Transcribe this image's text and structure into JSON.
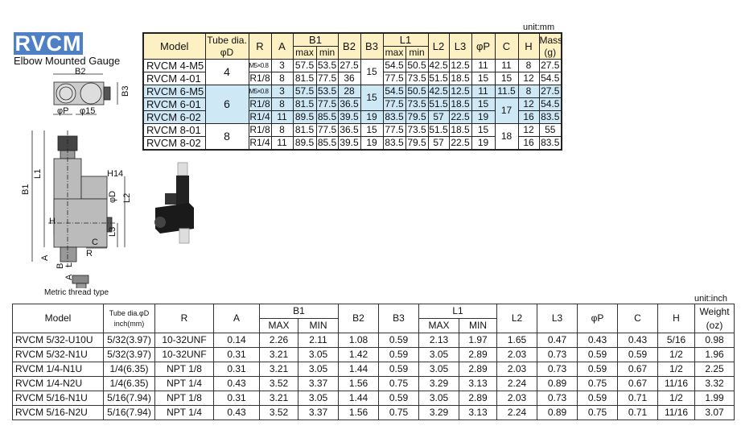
{
  "header": {
    "logo": "RVCM",
    "subtitle": "Elbow Mounted Gauge"
  },
  "drawing": {
    "labels": [
      "B2",
      "B3",
      "φP",
      "φ15",
      "B1",
      "L1",
      "H14",
      "φD",
      "L2",
      "L3",
      "H",
      "C",
      "R",
      "A"
    ],
    "metric_labels": [
      "B",
      "L",
      "A"
    ],
    "caption": "Metric thread type"
  },
  "metric_table": {
    "unit": "unit:mm",
    "headers": {
      "model": "Model",
      "tube_l1": "Tube dia.",
      "tube_l2": "φD",
      "r": "R",
      "a": "A",
      "b1": "B1",
      "max": "max",
      "min": "min",
      "b2": "B2",
      "b3": "B3",
      "l1": "L1",
      "l2": "L2",
      "l3": "L3",
      "p": "φP",
      "c": "C",
      "h": "H",
      "mass_l1": "Mass",
      "mass_l2": "(g)"
    },
    "rows": [
      {
        "model": "RVCM 4-M5",
        "d": "4",
        "r": "M5×0.8",
        "a": "3",
        "b1max": "57.5",
        "b1min": "53.5",
        "b2": "27.5",
        "b3": "15",
        "l1max": "54.5",
        "l1min": "50.5",
        "l2": "42.5",
        "l3": "12.5",
        "p": "11",
        "c": "11",
        "h": "8",
        "mass": "27.5"
      },
      {
        "model": "RVCM 4-01",
        "d": "4",
        "r": "R1/8",
        "a": "8",
        "b1max": "81.5",
        "b1min": "77.5",
        "b2": "36",
        "b3": "15",
        "l1max": "77.5",
        "l1min": "73.5",
        "l2": "51.5",
        "l3": "18.5",
        "p": "15",
        "c": "15",
        "h": "12",
        "mass": "54.5"
      },
      {
        "model": "RVCM 6-M5",
        "d": "6",
        "r": "M5×0.8",
        "a": "3",
        "b1max": "57.5",
        "b1min": "53.5",
        "b2": "28",
        "b3": "15",
        "l1max": "54.5",
        "l1min": "50.5",
        "l2": "42.5",
        "l3": "12.5",
        "p": "11",
        "c": "11.5",
        "h": "8",
        "mass": "27.5"
      },
      {
        "model": "RVCM 6-01",
        "d": "6",
        "r": "R1/8",
        "a": "8",
        "b1max": "81.5",
        "b1min": "77.5",
        "b2": "36.5",
        "b3": "15",
        "l1max": "77.5",
        "l1min": "73.5",
        "l2": "51.5",
        "l3": "18.5",
        "p": "15",
        "c": "17",
        "h": "12",
        "mass": "54.5"
      },
      {
        "model": "RVCM 6-02",
        "d": "6",
        "r": "R1/4",
        "a": "11",
        "b1max": "89.5",
        "b1min": "85.5",
        "b2": "39.5",
        "b3": "19",
        "l1max": "83.5",
        "l1min": "79.5",
        "l2": "57",
        "l3": "22.5",
        "p": "19",
        "c": "17",
        "h": "16",
        "mass": "83.5"
      },
      {
        "model": "RVCM 8-01",
        "d": "8",
        "r": "R1/8",
        "a": "8",
        "b1max": "81.5",
        "b1min": "77.5",
        "b2": "36.5",
        "b3": "15",
        "l1max": "77.5",
        "l1min": "73.5",
        "l2": "51.5",
        "l3": "18.5",
        "p": "15",
        "c": "18",
        "h": "12",
        "mass": "55"
      },
      {
        "model": "RVCM 8-02",
        "d": "8",
        "r": "R1/4",
        "a": "11",
        "b1max": "89.5",
        "b1min": "85.5",
        "b2": "39.5",
        "b3": "19",
        "l1max": "83.5",
        "l1min": "79.5",
        "l2": "57",
        "l3": "22.5",
        "p": "19",
        "c": "18",
        "h": "16",
        "mass": "83.5"
      }
    ],
    "highlight_color": "#cfe8f6",
    "header_color": "#fdf1c4"
  },
  "inch_table": {
    "unit": "unit:inch",
    "headers": {
      "model": "Model",
      "tube_l1": "Tube dia.φD",
      "tube_l2": "inch(mm)",
      "r": "R",
      "a": "A",
      "b1": "B1",
      "max": "MAX",
      "min": "MIN",
      "b2": "B2",
      "b3": "B3",
      "l1": "L1",
      "l2": "L2",
      "l3": "L3",
      "p": "φP",
      "c": "C",
      "h": "H",
      "weight_l1": "Weight",
      "weight_l2": "(oz)"
    },
    "rows": [
      {
        "model": "RVCM 5/32-U10U",
        "d": "5/32(3.97)",
        "r": "10-32UNF",
        "a": "0.14",
        "b1max": "2.26",
        "b1min": "2.11",
        "b2": "1.08",
        "b3": "0.59",
        "l1max": "2.13",
        "l1min": "1.97",
        "l2": "1.65",
        "l3": "0.47",
        "p": "0.43",
        "c": "0.43",
        "h": "5/16",
        "w": "0.98"
      },
      {
        "model": "RVCM 5/32-N1U",
        "d": "5/32(3.97)",
        "r": "10-32UNF",
        "a": "0.31",
        "b1max": "3.21",
        "b1min": "3.05",
        "b2": "1.42",
        "b3": "0.59",
        "l1max": "3.05",
        "l1min": "2.89",
        "l2": "2.03",
        "l3": "0.73",
        "p": "0.59",
        "c": "0.59",
        "h": "1/2",
        "w": "1.96"
      },
      {
        "model": "RVCM 1/4-N1U",
        "d": "1/4(6.35)",
        "r": "NPT 1/8",
        "a": "0.31",
        "b1max": "3.21",
        "b1min": "3.05",
        "b2": "1.44",
        "b3": "0.59",
        "l1max": "3.05",
        "l1min": "2.89",
        "l2": "2.03",
        "l3": "0.73",
        "p": "0.59",
        "c": "0.67",
        "h": "1/2",
        "w": "2.25"
      },
      {
        "model": "RVCM 1/4-N2U",
        "d": "1/4(6.35)",
        "r": "NPT 1/4",
        "a": "0.43",
        "b1max": "3.52",
        "b1min": "3.37",
        "b2": "1.56",
        "b3": "0.75",
        "l1max": "3.29",
        "l1min": "3.13",
        "l2": "2.24",
        "l3": "0.89",
        "p": "0.75",
        "c": "0.67",
        "h": "11/16",
        "w": "3.32"
      },
      {
        "model": "RVCM 5/16-N1U",
        "d": "5/16(7.94)",
        "r": "NPT 1/8",
        "a": "0.31",
        "b1max": "3.21",
        "b1min": "3.05",
        "b2": "1.44",
        "b3": "0.59",
        "l1max": "3.05",
        "l1min": "2.89",
        "l2": "2.03",
        "l3": "0.73",
        "p": "0.59",
        "c": "0.71",
        "h": "1/2",
        "w": "1.99"
      },
      {
        "model": "RVCM 5/16-N2U",
        "d": "5/16(7.94)",
        "r": "NPT 1/4",
        "a": "0.43",
        "b1max": "3.52",
        "b1min": "3.37",
        "b2": "1.56",
        "b3": "0.75",
        "l1max": "3.29",
        "l1min": "3.13",
        "l2": "2.24",
        "l3": "0.89",
        "p": "0.75",
        "c": "0.71",
        "h": "11/16",
        "w": "3.07"
      }
    ]
  }
}
